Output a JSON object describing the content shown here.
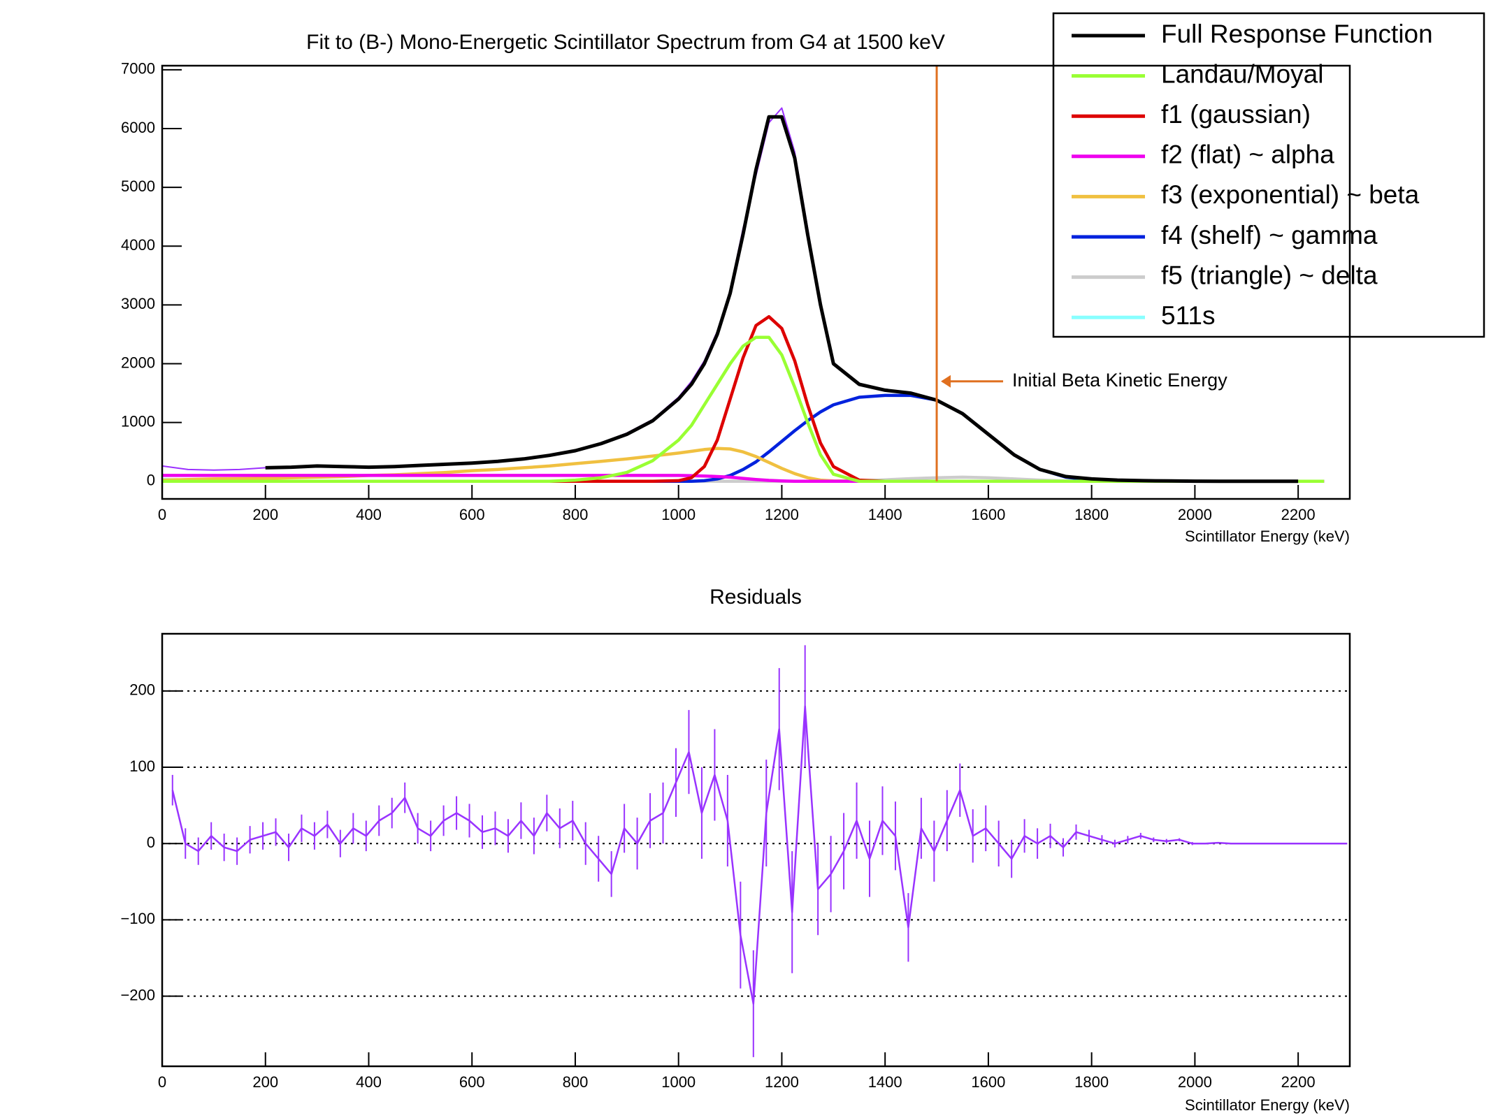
{
  "chart_data": [
    {
      "type": "line",
      "title": "Fit to (B-) Mono-Energetic Scintillator Spectrum from G4 at 1500 keV",
      "xlabel": "Scintillator Energy (keV)",
      "x": [
        0,
        50,
        100,
        150,
        200,
        250,
        300,
        350,
        400,
        450,
        500,
        550,
        600,
        650,
        700,
        750,
        800,
        850,
        900,
        950,
        1000,
        1025,
        1050,
        1075,
        1100,
        1125,
        1150,
        1175,
        1200,
        1225,
        1250,
        1275,
        1300,
        1350,
        1400,
        1450,
        1500,
        1550,
        1600,
        1650,
        1700,
        1750,
        1800,
        1850,
        1900,
        1950,
        2000,
        2050,
        2100,
        2150,
        2200,
        2250
      ],
      "histogram": {
        "color": "#9b30ff",
        "values": [
          260,
          200,
          190,
          200,
          230,
          245,
          255,
          250,
          245,
          255,
          265,
          300,
          320,
          340,
          390,
          450,
          530,
          650,
          820,
          1050,
          1430,
          1700,
          2050,
          2550,
          3250,
          4300,
          5200,
          6100,
          6350,
          5600,
          4300,
          3000,
          2000,
          1650,
          1540,
          1500,
          1380,
          1150,
          800,
          440,
          200,
          80,
          40,
          20,
          10,
          5,
          2,
          1,
          0,
          0,
          0,
          0
        ]
      },
      "series": [
        {
          "name": "Full Response Function",
          "color": "#000000",
          "values": [
            null,
            null,
            null,
            null,
            230,
            240,
            260,
            250,
            240,
            250,
            270,
            290,
            310,
            340,
            380,
            440,
            520,
            640,
            800,
            1030,
            1400,
            1650,
            2000,
            2500,
            3200,
            4200,
            5300,
            6200,
            6200,
            5500,
            4200,
            3000,
            2000,
            1650,
            1550,
            1500,
            1380,
            1150,
            800,
            450,
            200,
            80,
            40,
            20,
            10,
            5,
            2,
            1,
            0,
            0,
            0,
            null
          ]
        },
        {
          "name": "Landau/Moyal",
          "color": "#99ff33",
          "values": [
            0,
            0,
            0,
            0,
            0,
            0,
            0,
            0,
            0,
            0,
            0,
            0,
            0,
            0,
            0,
            0,
            20,
            60,
            150,
            350,
            700,
            950,
            1300,
            1650,
            2000,
            2300,
            2450,
            2450,
            2150,
            1600,
            1000,
            450,
            120,
            0,
            0,
            0,
            0,
            0,
            0,
            0,
            0,
            0,
            0,
            0,
            0,
            0,
            0,
            0,
            0,
            0,
            0,
            0
          ]
        },
        {
          "name": "f1 (gaussian)",
          "color": "#dd0000",
          "values": [
            0,
            0,
            0,
            0,
            0,
            0,
            0,
            0,
            0,
            0,
            0,
            0,
            0,
            0,
            0,
            0,
            0,
            0,
            0,
            0,
            10,
            60,
            250,
            700,
            1400,
            2100,
            2650,
            2800,
            2600,
            2050,
            1300,
            650,
            250,
            20,
            0,
            0,
            0,
            0,
            0,
            0,
            0,
            0,
            0,
            0,
            0,
            0,
            0,
            0,
            0,
            0,
            0,
            0
          ]
        },
        {
          "name": "f2 (flat) ~ alpha",
          "color": "#ee00ee",
          "values": [
            100,
            100,
            100,
            100,
            100,
            100,
            100,
            100,
            100,
            100,
            100,
            100,
            100,
            100,
            100,
            100,
            100,
            100,
            100,
            100,
            100,
            95,
            90,
            80,
            70,
            50,
            30,
            15,
            5,
            0,
            0,
            0,
            0,
            0,
            0,
            0,
            0,
            0,
            0,
            0,
            0,
            0,
            0,
            0,
            0,
            0,
            0,
            0,
            0,
            0,
            0,
            0
          ]
        },
        {
          "name": "f3 (exponential) ~ beta",
          "color": "#f0c040",
          "values": [
            20,
            30,
            40,
            45,
            50,
            60,
            70,
            80,
            100,
            110,
            130,
            150,
            180,
            200,
            230,
            260,
            300,
            340,
            380,
            430,
            480,
            510,
            540,
            560,
            550,
            500,
            420,
            320,
            220,
            130,
            60,
            20,
            5,
            0,
            0,
            0,
            0,
            0,
            0,
            0,
            0,
            0,
            0,
            0,
            0,
            0,
            0,
            0,
            0,
            0,
            0,
            0
          ]
        },
        {
          "name": "f4 (shelf) ~ gamma",
          "color": "#0022dd",
          "values": [
            0,
            0,
            0,
            0,
            0,
            0,
            0,
            0,
            0,
            0,
            0,
            0,
            0,
            0,
            0,
            0,
            0,
            0,
            0,
            0,
            0,
            0,
            10,
            40,
            100,
            200,
            330,
            500,
            680,
            860,
            1030,
            1180,
            1300,
            1430,
            1460,
            1460,
            1380,
            1150,
            800,
            450,
            200,
            70,
            20,
            5,
            0,
            0,
            0,
            0,
            0,
            0,
            0,
            0
          ]
        },
        {
          "name": "f5 (triangle) ~ delta",
          "color": "#cccccc",
          "values": [
            0,
            0,
            0,
            0,
            0,
            0,
            0,
            0,
            0,
            0,
            0,
            0,
            0,
            0,
            0,
            0,
            0,
            0,
            0,
            0,
            0,
            0,
            0,
            0,
            0,
            0,
            0,
            0,
            0,
            0,
            0,
            0,
            0,
            10,
            25,
            45,
            60,
            70,
            60,
            40,
            20,
            5,
            0,
            0,
            0,
            0,
            0,
            0,
            0,
            0,
            0,
            0
          ]
        },
        {
          "name": "511s",
          "color": "#88ffff",
          "values": [
            30,
            20,
            10,
            0,
            0,
            0,
            0,
            0,
            0,
            0,
            0,
            0,
            0,
            0,
            0,
            0,
            0,
            0,
            0,
            0,
            0,
            0,
            0,
            0,
            0,
            0,
            0,
            0,
            0,
            0,
            0,
            0,
            0,
            0,
            0,
            0,
            0,
            0,
            0,
            0,
            0,
            0,
            0,
            0,
            0,
            0,
            0,
            0,
            0,
            0,
            0,
            0
          ]
        }
      ],
      "vline": {
        "x": 1500,
        "color": "#e07020"
      },
      "annotation": {
        "text": "Initial Beta Kinetic Energy"
      },
      "legend": "top-right",
      "xlim": [
        0,
        2300
      ],
      "ylim": [
        -300,
        7070
      ],
      "xticks": [
        0,
        200,
        400,
        600,
        800,
        1000,
        1200,
        1400,
        1600,
        1800,
        2000,
        2200
      ],
      "yticks": [
        0,
        1000,
        2000,
        3000,
        4000,
        5000,
        6000,
        7000
      ]
    },
    {
      "type": "errorbar",
      "title": "Residuals",
      "xlabel": "Scintillator Energy (keV)",
      "color": "#9933ff",
      "x": [
        20,
        45,
        70,
        95,
        120,
        145,
        170,
        195,
        220,
        245,
        270,
        295,
        320,
        345,
        370,
        395,
        420,
        445,
        470,
        495,
        520,
        545,
        570,
        595,
        620,
        645,
        670,
        695,
        720,
        745,
        770,
        795,
        820,
        845,
        870,
        895,
        920,
        945,
        970,
        995,
        1020,
        1045,
        1070,
        1095,
        1120,
        1145,
        1170,
        1195,
        1220,
        1245,
        1270,
        1295,
        1320,
        1345,
        1370,
        1395,
        1420,
        1445,
        1470,
        1495,
        1520,
        1545,
        1570,
        1595,
        1620,
        1645,
        1670,
        1695,
        1720,
        1745,
        1770,
        1795,
        1820,
        1845,
        1870,
        1895,
        1920,
        1945,
        1970,
        1995,
        2020,
        2045,
        2070,
        2095,
        2120,
        2145,
        2170,
        2195,
        2220,
        2245,
        2270,
        2295
      ],
      "values": [
        70,
        0,
        -10,
        10,
        -5,
        -10,
        5,
        10,
        15,
        -5,
        20,
        10,
        25,
        0,
        20,
        10,
        30,
        40,
        60,
        20,
        10,
        30,
        40,
        30,
        15,
        20,
        10,
        30,
        10,
        40,
        20,
        30,
        0,
        -20,
        -40,
        20,
        0,
        30,
        40,
        80,
        120,
        40,
        90,
        30,
        -120,
        -210,
        40,
        150,
        -90,
        180,
        -60,
        -40,
        -10,
        30,
        -20,
        30,
        10,
        -110,
        20,
        -10,
        30,
        70,
        10,
        20,
        0,
        -20,
        10,
        0,
        10,
        -5,
        15,
        10,
        5,
        0,
        5,
        10,
        5,
        3,
        5,
        0,
        0,
        1,
        0,
        0,
        0,
        0,
        0,
        0,
        0,
        0,
        0,
        0
      ],
      "errors": [
        20,
        20,
        18,
        18,
        18,
        18,
        18,
        18,
        18,
        18,
        18,
        18,
        18,
        18,
        20,
        20,
        20,
        20,
        20,
        20,
        20,
        20,
        22,
        22,
        22,
        22,
        22,
        24,
        24,
        24,
        26,
        26,
        28,
        30,
        30,
        32,
        34,
        36,
        40,
        45,
        55,
        60,
        60,
        60,
        70,
        70,
        70,
        80,
        80,
        80,
        60,
        50,
        50,
        50,
        50,
        45,
        45,
        45,
        40,
        40,
        40,
        35,
        35,
        30,
        30,
        25,
        22,
        20,
        16,
        12,
        10,
        8,
        6,
        5,
        5,
        4,
        3,
        3,
        2,
        2,
        1,
        1,
        1,
        0,
        0,
        0,
        0,
        0,
        0,
        0,
        0,
        0
      ],
      "xlim": [
        0,
        2300
      ],
      "ylim": [
        -292,
        275
      ],
      "xticks": [
        0,
        200,
        400,
        600,
        800,
        1000,
        1200,
        1400,
        1600,
        1800,
        2000,
        2200
      ],
      "yticks": [
        {
          "value": -200,
          "label": "−200"
        },
        {
          "value": -100,
          "label": "−100"
        },
        0,
        100,
        200
      ],
      "grid": true
    }
  ]
}
